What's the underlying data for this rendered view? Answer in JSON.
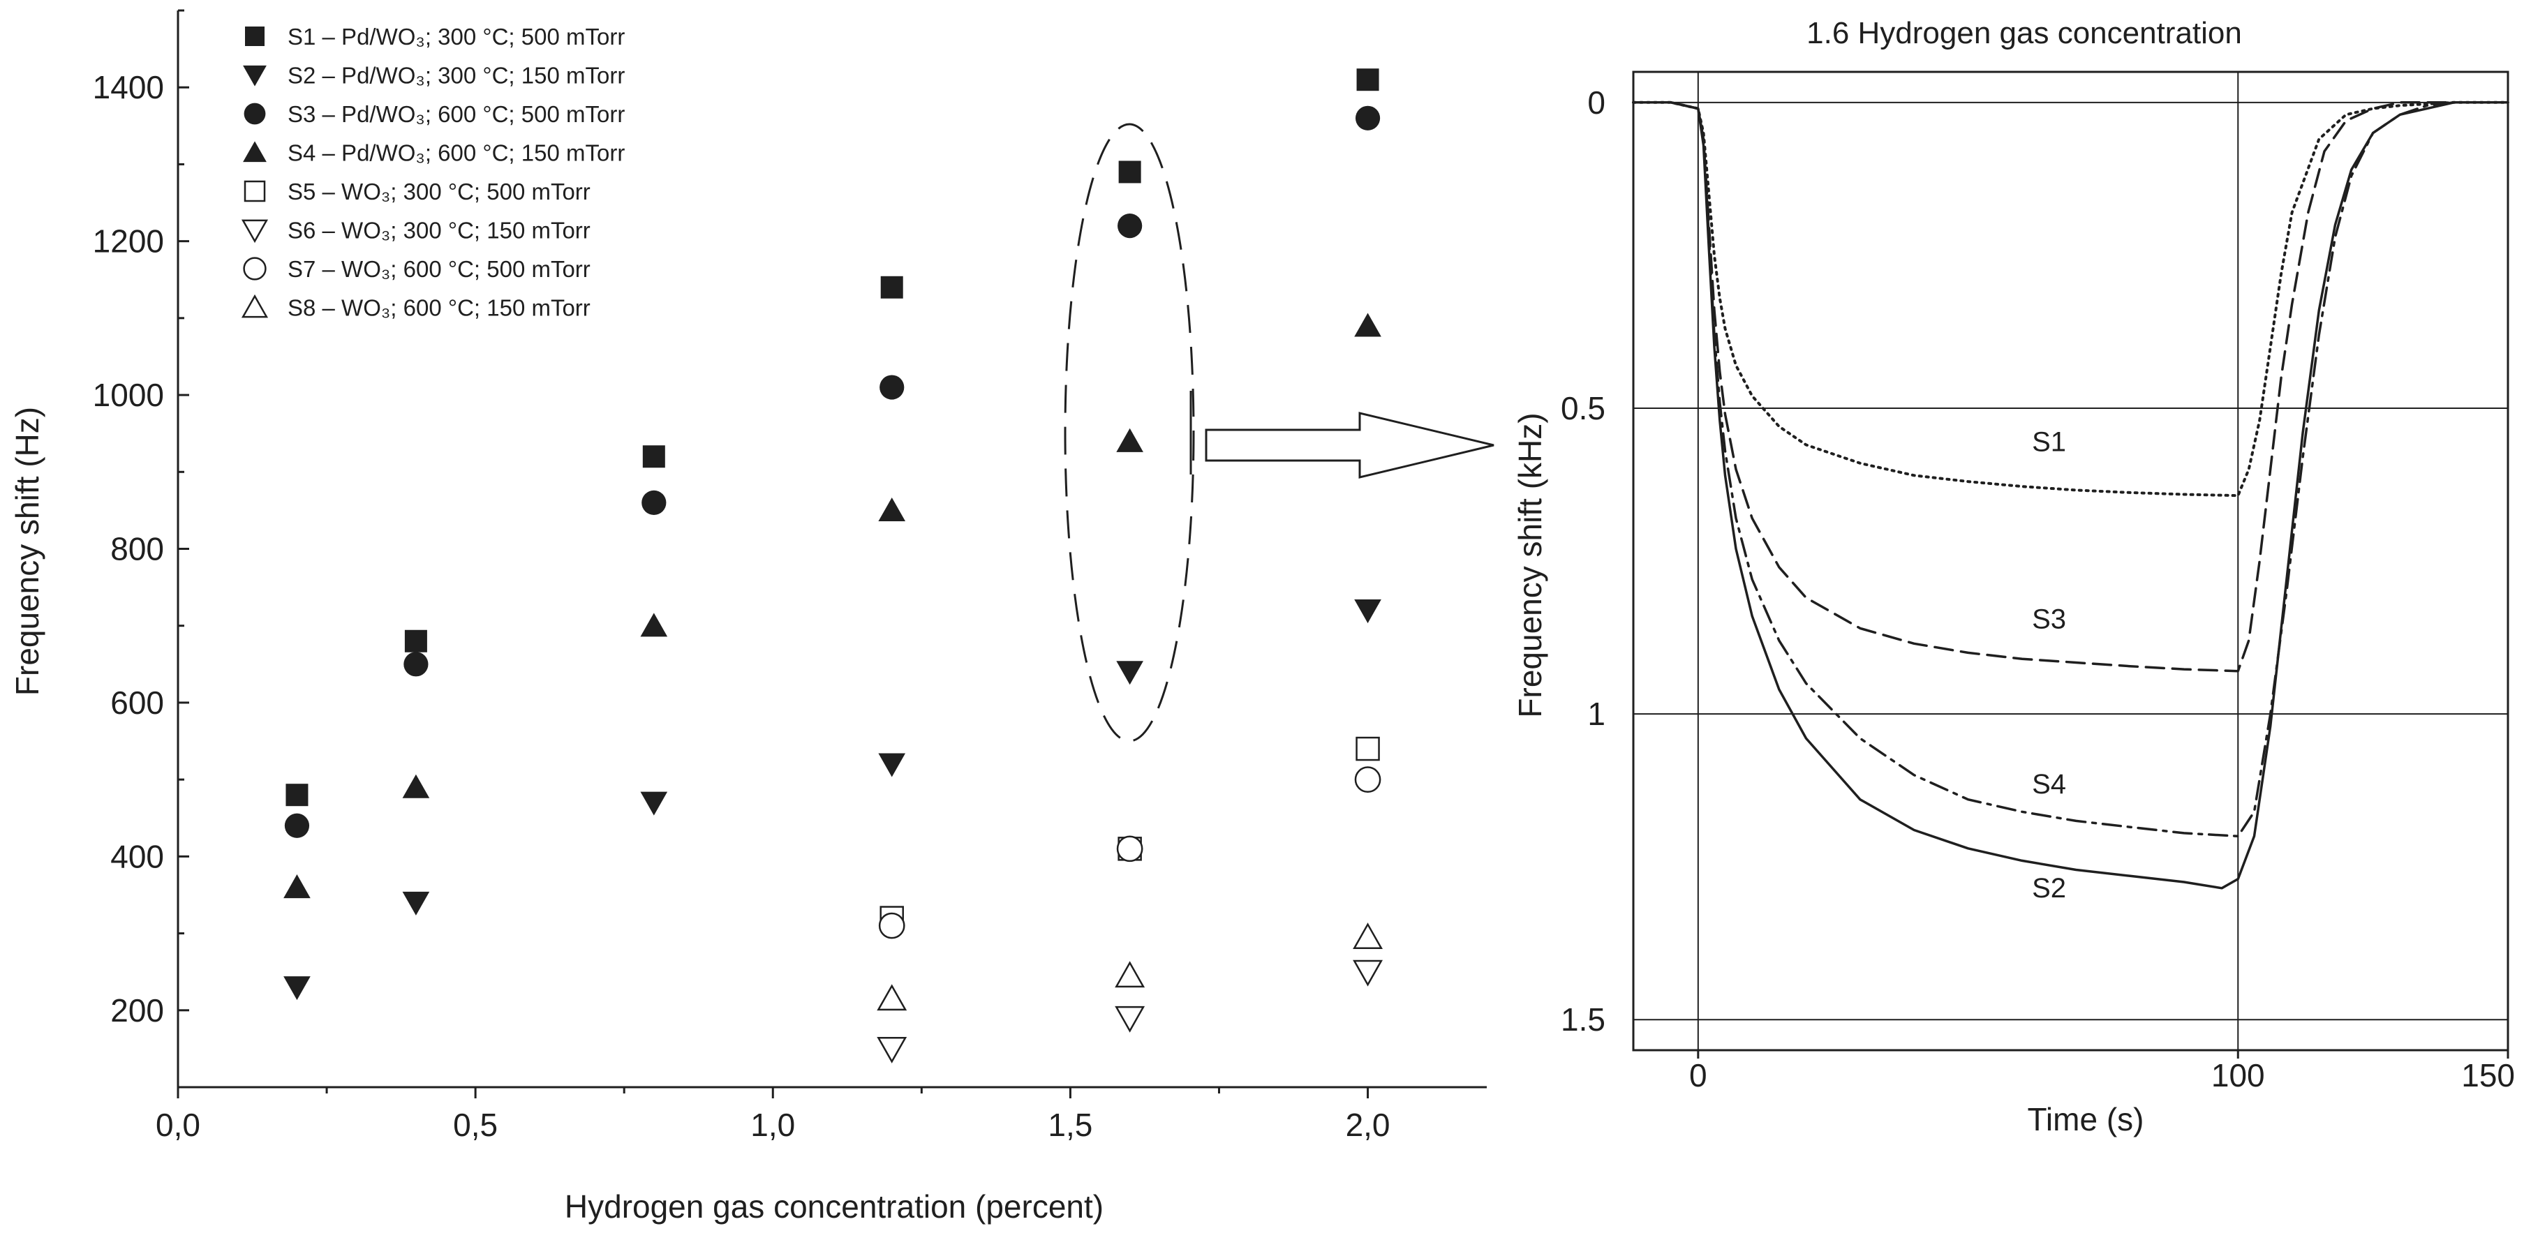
{
  "colors": {
    "ink": "#1f1f1f",
    "background": "#ffffff"
  },
  "chart_data": [
    {
      "type": "scatter",
      "title": "",
      "xlabel": "Hydrogen gas concentration (percent)",
      "ylabel": "Frequency shift (Hz)",
      "xlim": [
        0.0,
        2.2
      ],
      "ylim": [
        100,
        1500
      ],
      "x_ticks": [
        "0,0",
        "0,5",
        "1,0",
        "1,5",
        "2,0"
      ],
      "x_tick_values": [
        0.0,
        0.5,
        1.0,
        1.5,
        2.0
      ],
      "y_ticks": [
        "200",
        "400",
        "600",
        "800",
        "1000",
        "1200",
        "1400"
      ],
      "y_tick_values": [
        200,
        400,
        600,
        800,
        1000,
        1200,
        1400
      ],
      "grid": false,
      "legend_position": "top-left",
      "series": [
        {
          "name": "S1",
          "legend_label": "S1 – Pd/WO₃; 300 °C; 500 mTorr",
          "marker": "square",
          "filled": true,
          "x": [
            0.2,
            0.4,
            0.8,
            1.2,
            1.6,
            2.0
          ],
          "y": [
            480,
            680,
            920,
            1140,
            1290,
            1410
          ]
        },
        {
          "name": "S2",
          "legend_label": "S2 – Pd/WO₃; 300 °C; 150 mTorr",
          "marker": "triangle-down",
          "filled": true,
          "x": [
            0.2,
            0.4,
            0.8,
            1.2,
            1.6,
            2.0
          ],
          "y": [
            230,
            340,
            470,
            520,
            640,
            720
          ]
        },
        {
          "name": "S3",
          "legend_label": "S3 – Pd/WO₃; 600 °C; 500 mTorr",
          "marker": "circle",
          "filled": true,
          "x": [
            0.2,
            0.4,
            0.8,
            1.2,
            1.6,
            2.0
          ],
          "y": [
            440,
            650,
            860,
            1010,
            1220,
            1360
          ]
        },
        {
          "name": "S4",
          "legend_label": "S4 – Pd/WO₃; 600 °C; 150 mTorr",
          "marker": "triangle-up",
          "filled": true,
          "x": [
            0.2,
            0.4,
            0.8,
            1.2,
            1.6,
            2.0
          ],
          "y": [
            360,
            490,
            700,
            850,
            940,
            1090
          ]
        },
        {
          "name": "S5",
          "legend_label": "S5 – WO₃; 300 °C; 500 mTorr",
          "marker": "square",
          "filled": false,
          "x": [
            1.2,
            1.6,
            2.0
          ],
          "y": [
            320,
            410,
            540
          ]
        },
        {
          "name": "S6",
          "legend_label": "S6 – WO₃; 300 °C; 150 mTorr",
          "marker": "triangle-down",
          "filled": false,
          "x": [
            1.2,
            1.6,
            2.0
          ],
          "y": [
            150,
            190,
            250
          ]
        },
        {
          "name": "S7",
          "legend_label": "S7 – WO₃; 600 °C; 500 mTorr",
          "marker": "circle",
          "filled": false,
          "x": [
            1.2,
            1.6,
            2.0
          ],
          "y": [
            310,
            410,
            500
          ]
        },
        {
          "name": "S8",
          "legend_label": "S8 – WO₃; 600 °C; 150 mTorr",
          "marker": "triangle-up",
          "filled": false,
          "x": [
            1.2,
            1.6,
            2.0
          ],
          "y": [
            215,
            245,
            295
          ]
        }
      ],
      "annotations": [
        "dashed ellipse highlighting the 1.6 percent points",
        "arrow pointing to the time-response plot"
      ]
    },
    {
      "type": "line",
      "title": "1.6 Hydrogen gas concentration",
      "xlabel": "Time (s)",
      "ylabel": "Frequency shift (kHz)",
      "xlim": [
        -12,
        150
      ],
      "ylim": [
        -0.05,
        1.55
      ],
      "y_inverted": true,
      "x_ticks": [
        "0",
        "100",
        "150"
      ],
      "x_tick_values": [
        0,
        100,
        150
      ],
      "y_ticks": [
        "0",
        "0.5",
        "1",
        "1.5"
      ],
      "y_tick_values": [
        0,
        0.5,
        1,
        1.5
      ],
      "grid": true,
      "series": [
        {
          "name": "S1",
          "style": "dotted",
          "x": [
            -12,
            -5,
            0,
            1,
            2,
            3,
            4,
            5,
            7,
            10,
            15,
            20,
            30,
            40,
            50,
            60,
            70,
            80,
            90,
            100,
            102,
            104,
            106,
            108,
            110,
            115,
            120,
            125,
            130,
            140,
            150
          ],
          "y": [
            0,
            0,
            0.01,
            0.05,
            0.15,
            0.25,
            0.32,
            0.37,
            0.43,
            0.48,
            0.53,
            0.56,
            0.59,
            0.61,
            0.62,
            0.628,
            0.634,
            0.638,
            0.641,
            0.643,
            0.6,
            0.52,
            0.4,
            0.28,
            0.18,
            0.06,
            0.02,
            0.01,
            0.005,
            0.0,
            0.0
          ]
        },
        {
          "name": "S3",
          "style": "dashed",
          "x": [
            -12,
            -5,
            0,
            1,
            2,
            3,
            4,
            5,
            7,
            10,
            15,
            20,
            30,
            40,
            50,
            60,
            70,
            80,
            90,
            100,
            102,
            104,
            106,
            108,
            110,
            113,
            116,
            120,
            125,
            130,
            140,
            150
          ],
          "y": [
            0,
            0,
            0.01,
            0.06,
            0.2,
            0.34,
            0.44,
            0.51,
            0.6,
            0.68,
            0.76,
            0.81,
            0.86,
            0.885,
            0.9,
            0.91,
            0.916,
            0.922,
            0.927,
            0.93,
            0.88,
            0.75,
            0.6,
            0.45,
            0.33,
            0.18,
            0.08,
            0.03,
            0.01,
            0.0,
            0.0,
            0.0
          ]
        },
        {
          "name": "S4",
          "style": "dash-dot",
          "x": [
            -12,
            -5,
            0,
            1,
            2,
            3,
            4,
            5,
            7,
            10,
            15,
            20,
            30,
            40,
            50,
            60,
            70,
            80,
            90,
            100,
            103,
            106,
            109,
            112,
            115,
            118,
            121,
            125,
            130,
            135,
            140,
            150
          ],
          "y": [
            0,
            0,
            0.01,
            0.06,
            0.22,
            0.38,
            0.49,
            0.57,
            0.68,
            0.78,
            0.88,
            0.95,
            1.04,
            1.1,
            1.14,
            1.16,
            1.175,
            1.185,
            1.195,
            1.2,
            1.16,
            1.0,
            0.8,
            0.58,
            0.38,
            0.22,
            0.12,
            0.05,
            0.02,
            0.005,
            0.0,
            0.0
          ]
        },
        {
          "name": "S2",
          "style": "solid",
          "x": [
            -12,
            -5,
            0,
            1,
            2,
            3,
            4,
            5,
            7,
            10,
            15,
            20,
            30,
            40,
            50,
            60,
            70,
            80,
            90,
            97,
            100,
            103,
            106,
            109,
            112,
            115,
            118,
            121,
            125,
            130,
            135,
            140,
            150
          ],
          "y": [
            0,
            0,
            0.01,
            0.07,
            0.24,
            0.4,
            0.52,
            0.61,
            0.73,
            0.84,
            0.96,
            1.04,
            1.14,
            1.19,
            1.22,
            1.24,
            1.255,
            1.265,
            1.275,
            1.285,
            1.27,
            1.2,
            1.02,
            0.78,
            0.54,
            0.34,
            0.2,
            0.11,
            0.05,
            0.02,
            0.01,
            0.0,
            0.0
          ]
        }
      ],
      "curve_labels": [
        {
          "text": "S1",
          "x": 65,
          "y": 0.57
        },
        {
          "text": "S3",
          "x": 65,
          "y": 0.86
        },
        {
          "text": "S4",
          "x": 65,
          "y": 1.13
        },
        {
          "text": "S2",
          "x": 65,
          "y": 1.3
        }
      ]
    }
  ]
}
